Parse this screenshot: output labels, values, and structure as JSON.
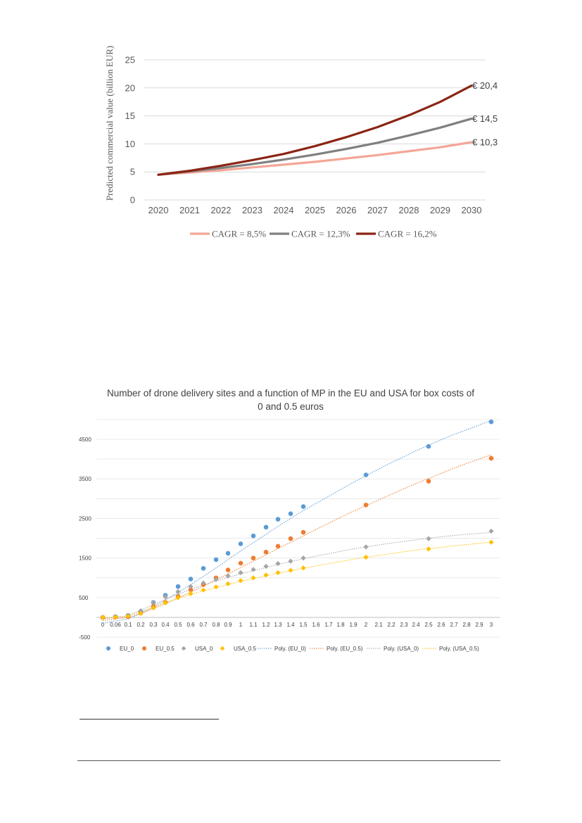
{
  "chart_data": [
    {
      "type": "line",
      "title": "",
      "ylabel": "Predicted commercial value (billion EUR)",
      "xlabel": "",
      "ylim": [
        0,
        25
      ],
      "yticks": [
        "0",
        "5",
        "10",
        "15",
        "20",
        "25"
      ],
      "categories": [
        "2020",
        "2021",
        "2022",
        "2023",
        "2024",
        "2025",
        "2026",
        "2027",
        "2028",
        "2029",
        "2030"
      ],
      "grid": true,
      "legend": "bottom",
      "series": [
        {
          "name": "CAGR = 8,5%",
          "color": "#f4a696",
          "end_label": "€ 10,3",
          "values": [
            4.5,
            4.9,
            5.3,
            5.8,
            6.3,
            6.8,
            7.4,
            8.0,
            8.7,
            9.4,
            10.3
          ]
        },
        {
          "name": "CAGR = 12,3%",
          "color": "#7f7f7f",
          "end_label": "€ 14,5",
          "values": [
            4.5,
            5.1,
            5.7,
            6.4,
            7.2,
            8.1,
            9.1,
            10.2,
            11.5,
            12.9,
            14.5
          ]
        },
        {
          "name": "CAGR = 16,2%",
          "color": "#8b2414",
          "end_label": "€ 20,4",
          "values": [
            4.5,
            5.2,
            6.1,
            7.1,
            8.2,
            9.6,
            11.2,
            13.0,
            15.1,
            17.5,
            20.4
          ]
        }
      ]
    },
    {
      "type": "scatter",
      "title": "Number of drone delivery sites and a function of MP in the EU and USA for box costs of 0 and 0.5 euros",
      "xlabel": "",
      "ylabel": "",
      "ylim": [
        -500,
        5000
      ],
      "yticks": [
        "-500",
        "500",
        "1500",
        "2500",
        "3500",
        "4500"
      ],
      "categories": [
        "0",
        "0.06",
        "0.1",
        "0.2",
        "0.3",
        "0.4",
        "0.5",
        "0.6",
        "0.7",
        "0.8",
        "0.9",
        "1",
        "1.1",
        "1.2",
        "1.3",
        "1.4",
        "1.5",
        "1.6",
        "1.7",
        "1.8",
        "1.9",
        "2",
        "2.1",
        "2.2",
        "2.3",
        "2.4",
        "2.5",
        "2.6",
        "2.7",
        "2.8",
        "2.9",
        "3"
      ],
      "grid": true,
      "legend": "bottom",
      "series": [
        {
          "name": "EU_0",
          "color": "#5b9bd5",
          "marker": "circle",
          "x": [
            "0",
            "0.06",
            "0.1",
            "0.2",
            "0.3",
            "0.4",
            "0.5",
            "0.6",
            "0.7",
            "0.8",
            "0.9",
            "1",
            "1.1",
            "1.2",
            "1.3",
            "1.4",
            "1.5",
            "2",
            "2.5",
            "3"
          ],
          "values": [
            0,
            20,
            50,
            150,
            380,
            560,
            780,
            970,
            1240,
            1460,
            1620,
            1860,
            2060,
            2280,
            2480,
            2620,
            2800,
            3600,
            4320,
            4940
          ]
        },
        {
          "name": "EU_0.5",
          "color": "#ed7d31",
          "marker": "circle",
          "x": [
            "0",
            "0.06",
            "0.1",
            "0.2",
            "0.3",
            "0.4",
            "0.5",
            "0.6",
            "0.7",
            "0.8",
            "0.9",
            "1",
            "1.1",
            "1.2",
            "1.3",
            "1.4",
            "1.5",
            "2",
            "2.5",
            "3"
          ],
          "values": [
            0,
            10,
            20,
            110,
            280,
            380,
            530,
            700,
            830,
            1000,
            1200,
            1370,
            1500,
            1650,
            1800,
            1990,
            2150,
            2840,
            3440,
            4020
          ]
        },
        {
          "name": "USA_0",
          "color": "#a5a5a5",
          "marker": "diamond",
          "x": [
            "0",
            "0.06",
            "0.1",
            "0.2",
            "0.3",
            "0.4",
            "0.5",
            "0.6",
            "0.7",
            "0.8",
            "0.9",
            "1",
            "1.1",
            "1.2",
            "1.3",
            "1.4",
            "1.5",
            "2",
            "2.5",
            "3"
          ],
          "values": [
            0,
            20,
            50,
            170,
            380,
            520,
            650,
            780,
            870,
            960,
            1050,
            1130,
            1210,
            1290,
            1360,
            1420,
            1500,
            1780,
            1990,
            2180
          ]
        },
        {
          "name": "USA_0.5",
          "color": "#ffc000",
          "marker": "diamond",
          "x": [
            "0",
            "0.06",
            "0.1",
            "0.2",
            "0.3",
            "0.4",
            "0.5",
            "0.6",
            "0.7",
            "0.8",
            "0.9",
            "1",
            "1.1",
            "1.2",
            "1.3",
            "1.4",
            "1.5",
            "2",
            "2.5",
            "3"
          ],
          "values": [
            0,
            10,
            30,
            100,
            240,
            370,
            500,
            600,
            690,
            770,
            850,
            930,
            1000,
            1070,
            1130,
            1190,
            1250,
            1520,
            1730,
            1900
          ]
        }
      ],
      "trendlines": [
        {
          "name": "Poly. (EU_0)",
          "color": "#5b9bd5",
          "values": [
            -150,
            -90,
            -40,
            100,
            260,
            440,
            630,
            830,
            1040,
            1250,
            1460,
            1680,
            1890,
            2100,
            2300,
            2500,
            2700,
            2880,
            3060,
            3230,
            3410,
            3580,
            3750,
            3910,
            4060,
            4210,
            4350,
            4490,
            4620,
            4740,
            4860,
            4980
          ]
        },
        {
          "name": "Poly. (EU_0.5)",
          "color": "#ed7d31",
          "values": [
            -80,
            -40,
            0,
            100,
            220,
            350,
            490,
            640,
            790,
            950,
            1100,
            1260,
            1420,
            1580,
            1740,
            1900,
            2060,
            2220,
            2380,
            2530,
            2680,
            2820,
            2970,
            3110,
            3250,
            3380,
            3510,
            3640,
            3770,
            3890,
            4000,
            4110
          ]
        },
        {
          "name": "Poly. (USA_0)",
          "color": "#a5a5a5",
          "values": [
            -40,
            0,
            40,
            180,
            320,
            460,
            590,
            710,
            820,
            920,
            1010,
            1100,
            1180,
            1260,
            1340,
            1410,
            1480,
            1550,
            1610,
            1670,
            1730,
            1780,
            1830,
            1880,
            1920,
            1960,
            2000,
            2040,
            2070,
            2100,
            2120,
            2150
          ]
        },
        {
          "name": "Poly. (USA_0.5)",
          "color": "#ffc000",
          "values": [
            -20,
            10,
            40,
            140,
            260,
            370,
            480,
            580,
            670,
            750,
            830,
            910,
            980,
            1050,
            1120,
            1180,
            1240,
            1300,
            1360,
            1410,
            1470,
            1520,
            1570,
            1610,
            1660,
            1700,
            1740,
            1770,
            1810,
            1840,
            1870,
            1900
          ]
        }
      ]
    }
  ]
}
